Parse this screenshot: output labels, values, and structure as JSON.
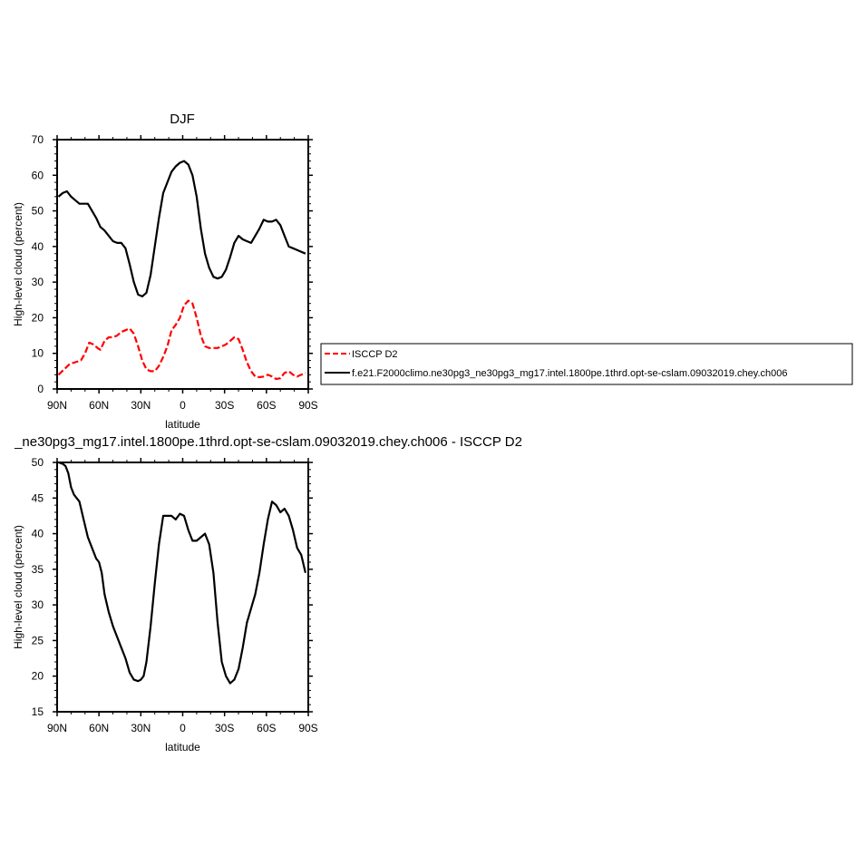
{
  "chart_data": [
    {
      "type": "line",
      "title": "DJF",
      "xlabel": "latitude",
      "ylabel": "High-level cloud (percent)",
      "xlim": [
        90,
        -90
      ],
      "ylim": [
        0,
        70
      ],
      "x_ticks": [
        {
          "value": 90,
          "label": "90N"
        },
        {
          "value": 60,
          "label": "60N"
        },
        {
          "value": 30,
          "label": "30N"
        },
        {
          "value": 0,
          "label": "0"
        },
        {
          "value": -30,
          "label": "30S"
        },
        {
          "value": -60,
          "label": "60S"
        },
        {
          "value": -90,
          "label": "90S"
        }
      ],
      "y_ticks": [
        0,
        10,
        20,
        30,
        40,
        50,
        60,
        70
      ],
      "series": [
        {
          "name": "ISCCP D2",
          "color": "#ff0000",
          "dash": true,
          "x": [
            89,
            85,
            81,
            77,
            73,
            70,
            67,
            64,
            61,
            59,
            56,
            53,
            50,
            47,
            44,
            41,
            38,
            35,
            32,
            29,
            26,
            23,
            20,
            17,
            14,
            11,
            8,
            5,
            2,
            -1,
            -4,
            -7,
            -10,
            -13,
            -16,
            -19,
            -22,
            -25,
            -28,
            -31,
            -34,
            -37,
            -40,
            -43,
            -46,
            -49,
            -52,
            -55,
            -58,
            -61,
            -64,
            -67,
            -70,
            -73,
            -76,
            -79,
            -82,
            -85,
            -88
          ],
          "values": [
            4,
            5.5,
            7,
            7.5,
            8,
            10,
            13,
            12.5,
            11.5,
            11,
            13.5,
            14.5,
            14.5,
            15,
            16,
            16.5,
            17,
            15.5,
            12,
            8,
            5.5,
            5,
            5,
            6.5,
            9,
            12,
            16.5,
            18,
            20,
            23.5,
            24.8,
            24,
            20,
            15,
            12,
            11.5,
            11.5,
            11.5,
            12,
            12.5,
            13.5,
            14.5,
            14,
            11,
            7.5,
            5,
            3.5,
            3.3,
            3.5,
            4,
            3.5,
            2.8,
            3,
            4.5,
            5,
            4,
            3.5,
            4,
            4.5
          ]
        },
        {
          "name": "f.e21.F2000climo.ne30pg3_ne30pg3_mg17.intel.1800pe.1thrd.opt-se-cslam.09032019.chey.ch006",
          "color": "#000000",
          "dash": false,
          "x": [
            89,
            86,
            83,
            80,
            77,
            74,
            71,
            68,
            65,
            62,
            59,
            56,
            53,
            50,
            47,
            44,
            41,
            38,
            35,
            32,
            29,
            26,
            23,
            20,
            17,
            14,
            11,
            8,
            5,
            2,
            -1,
            -4,
            -7,
            -10,
            -13,
            -16,
            -19,
            -22,
            -25,
            -28,
            -31,
            -34,
            -37,
            -40,
            -43,
            -46,
            -49,
            -52,
            -55,
            -58,
            -61,
            -64,
            -67,
            -70,
            -73,
            -76,
            -79,
            -82,
            -85,
            -88
          ],
          "values": [
            54,
            55,
            55.5,
            54,
            53,
            52,
            52,
            52,
            50,
            48,
            45.5,
            44.5,
            43,
            41.5,
            41,
            41,
            39.5,
            35,
            30,
            26.5,
            26,
            27,
            32,
            40,
            48,
            55,
            58,
            61,
            62.5,
            63.5,
            64,
            63,
            60,
            54,
            45,
            38,
            34,
            31.5,
            31,
            31.5,
            33.5,
            37,
            41,
            43,
            42,
            41.5,
            41,
            43,
            45,
            47.5,
            47,
            47,
            47.5,
            46,
            43,
            40,
            39.5,
            39,
            38.5,
            38
          ]
        }
      ],
      "legend_position": "right"
    },
    {
      "type": "line",
      "title": "_ne30pg3_mg17.intel.1800pe.1thrd.opt-se-cslam.09032019.chey.ch006 - ISCCP D2",
      "xlabel": "latitude",
      "ylabel": "High-level cloud (percent)",
      "xlim": [
        90,
        -90
      ],
      "ylim": [
        15,
        50
      ],
      "x_ticks": [
        {
          "value": 90,
          "label": "90N"
        },
        {
          "value": 60,
          "label": "60N"
        },
        {
          "value": 30,
          "label": "30N"
        },
        {
          "value": 0,
          "label": "0"
        },
        {
          "value": -30,
          "label": "30S"
        },
        {
          "value": -60,
          "label": "60S"
        },
        {
          "value": -90,
          "label": "90S"
        }
      ],
      "y_ticks": [
        15,
        20,
        25,
        30,
        35,
        40,
        45,
        50
      ],
      "series": [
        {
          "color": "#000000",
          "dash": false,
          "x": [
            89,
            86,
            84,
            82,
            80,
            78,
            76,
            74,
            71,
            68,
            65,
            62,
            60,
            58,
            56,
            53,
            50,
            47,
            44,
            41,
            38,
            35,
            32,
            30,
            28,
            26,
            23,
            20,
            17,
            14,
            11,
            8,
            5,
            2,
            -1,
            -4,
            -7,
            -10,
            -13,
            -16,
            -19,
            -22,
            -25,
            -28,
            -31,
            -34,
            -37,
            -40,
            -43,
            -46,
            -49,
            -52,
            -55,
            -58,
            -61,
            -64,
            -67,
            -70,
            -73,
            -76,
            -79,
            -82,
            -85,
            -88
          ],
          "values": [
            50,
            49.8,
            49.5,
            48.5,
            46.5,
            45.5,
            45,
            44.5,
            42,
            39.5,
            38,
            36.5,
            36,
            34.5,
            31.5,
            29,
            27,
            25.5,
            24,
            22.5,
            20.5,
            19.5,
            19.3,
            19.5,
            20,
            22,
            27,
            33,
            38.5,
            42.5,
            42.5,
            42.5,
            42,
            42.8,
            42.5,
            40.5,
            39,
            39,
            39.5,
            40,
            38.5,
            34.5,
            27.5,
            22,
            20,
            19,
            19.5,
            21,
            24,
            27.5,
            29.5,
            31.5,
            34.5,
            38.5,
            42,
            44.5,
            44,
            43,
            43.5,
            42.5,
            40.5,
            38,
            37,
            34.5
          ]
        }
      ]
    }
  ]
}
